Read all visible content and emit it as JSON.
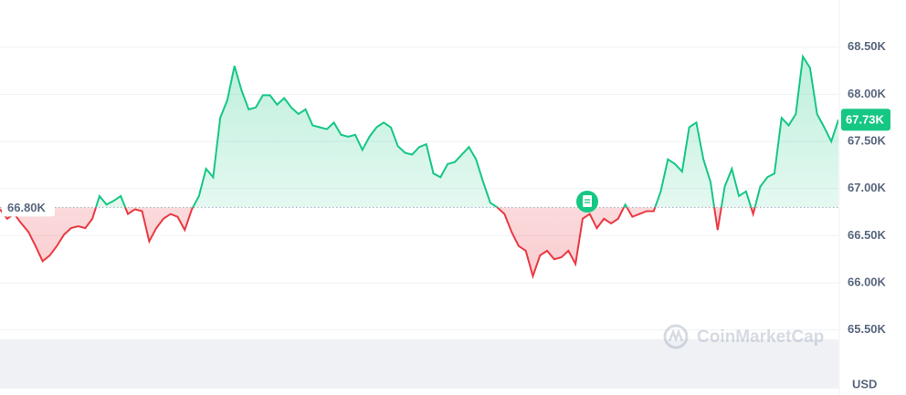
{
  "chart_data": {
    "type": "line",
    "currency": "USD",
    "watermark": "CoinMarketCap",
    "ylim": [
      64810,
      69000
    ],
    "yticks": [
      {
        "value": 65500,
        "label": "65.50K"
      },
      {
        "value": 66000,
        "label": "66.00K"
      },
      {
        "value": 66500,
        "label": "66.50K"
      },
      {
        "value": 67000,
        "label": "67.00K"
      },
      {
        "value": 67500,
        "label": "67.50K"
      },
      {
        "value": 68000,
        "label": "68.00K"
      },
      {
        "value": 68500,
        "label": "68.50K"
      }
    ],
    "grid": true,
    "baseline": {
      "value": 66800,
      "label": "66.80K"
    },
    "price_label": {
      "value": 67730,
      "label": "67.73K"
    },
    "up_color": "#16c784",
    "down_color": "#ea3943",
    "values": [
      66780,
      66680,
      66730,
      66630,
      66540,
      66390,
      66230,
      66290,
      66390,
      66510,
      66580,
      66600,
      66580,
      66680,
      66920,
      66830,
      66870,
      66920,
      66730,
      66780,
      66760,
      66440,
      66580,
      66680,
      66730,
      66700,
      66560,
      66780,
      66920,
      67210,
      67120,
      67750,
      67940,
      68300,
      68040,
      67840,
      67860,
      67990,
      67990,
      67890,
      67960,
      67860,
      67790,
      67840,
      67670,
      67650,
      67630,
      67700,
      67570,
      67550,
      67570,
      67410,
      67550,
      67650,
      67700,
      67650,
      67450,
      67380,
      67360,
      67440,
      67470,
      67160,
      67120,
      67260,
      67280,
      67360,
      67440,
      67310,
      67070,
      66850,
      66800,
      66730,
      66540,
      66390,
      66340,
      66070,
      66290,
      66340,
      66250,
      66270,
      66340,
      66200,
      66680,
      66730,
      66580,
      66680,
      66630,
      66680,
      66830,
      66700,
      66730,
      66760,
      66760,
      66970,
      67310,
      67260,
      67180,
      67650,
      67700,
      67310,
      67070,
      66560,
      67020,
      67210,
      66920,
      66970,
      66730,
      67020,
      67120,
      67160,
      67750,
      67670,
      67790,
      68400,
      68280,
      67790,
      67650,
      67500,
      67730
    ]
  }
}
